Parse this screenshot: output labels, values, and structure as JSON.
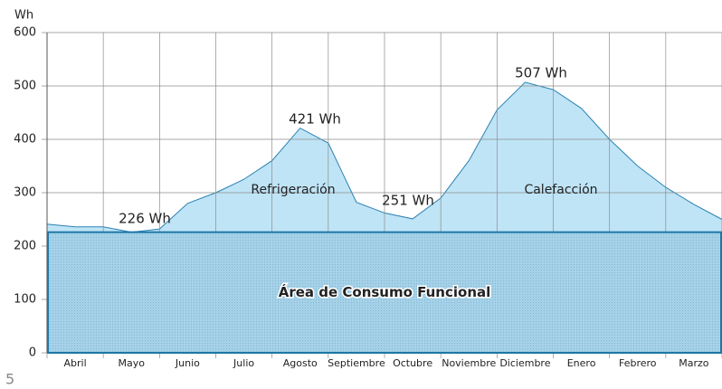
{
  "page_number": "5",
  "chart_data": {
    "type": "area",
    "y_label": "Wh",
    "categories": [
      "Abril",
      "Mayo",
      "Junio",
      "Julio",
      "Agosto",
      "Septiembre",
      "Octubre",
      "Noviembre",
      "Diciembre",
      "Enero",
      "Febrero",
      "Marzo"
    ],
    "x": [
      0,
      0.5,
      1,
      1.5,
      2,
      2.5,
      3,
      3.5,
      4,
      4.5,
      5,
      5.5,
      6,
      6.5,
      7,
      7.5,
      8,
      8.5,
      9,
      9.5,
      10,
      10.5,
      11,
      11.5,
      12
    ],
    "values": [
      241,
      236,
      236,
      226,
      232,
      280,
      300,
      325,
      360,
      421,
      393,
      282,
      262,
      251,
      290,
      360,
      455,
      507,
      493,
      458,
      400,
      350,
      310,
      278,
      250
    ],
    "xlim": [
      0,
      12
    ],
    "ylim": [
      0,
      600
    ],
    "yticks": [
      0,
      100,
      200,
      300,
      400,
      500,
      600
    ],
    "grid": true,
    "color": "#bfe4f6",
    "line_color": "#2b82b4",
    "baseline": {
      "value": 226,
      "label": "Área de Consumo Funcional",
      "color": "#a6d2e8",
      "border": "#1c77a6"
    },
    "annotations": [
      "226 Wh",
      "421 Wh",
      "251 Wh",
      "507 Wh"
    ],
    "regions": [
      "Refrigeración",
      "Calefacción"
    ]
  }
}
